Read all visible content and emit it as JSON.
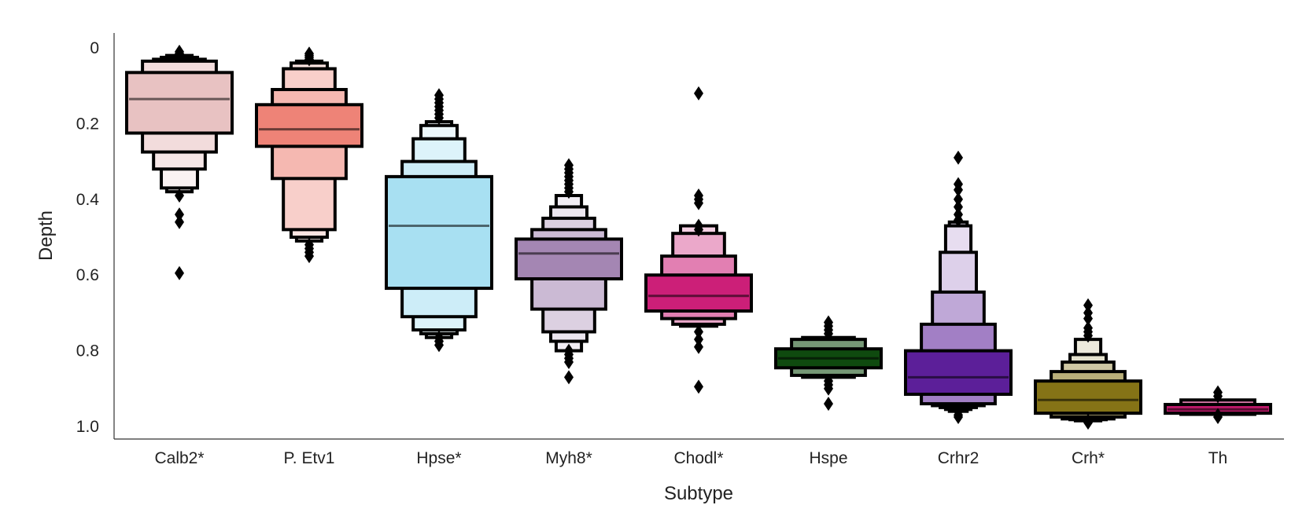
{
  "chart_data": {
    "type": "boxen",
    "xlabel": "Subtype",
    "ylabel": "Depth",
    "ylim": [
      0,
      1.0
    ],
    "y_inverted": true,
    "yticks": [
      "0",
      "0.2",
      "0.4",
      "0.6",
      "0.8",
      "1.0"
    ],
    "grid": false,
    "legend": "none",
    "categories": [
      "Calb2*",
      "P. Etv1",
      "Hpse*",
      "Myh8*",
      "Chodl*",
      "Hspe",
      "Crhr2",
      "Crh*",
      "Th"
    ],
    "series": [
      {
        "category": "Calb2*",
        "color": "#e8c2c2",
        "median": 0.135,
        "boxes": [
          [
            0.065,
            0.225
          ],
          [
            0.035,
            0.275
          ],
          [
            0.03,
            0.32
          ],
          [
            0.025,
            0.37
          ],
          [
            0.02,
            0.38
          ]
        ],
        "outliers": [
          0.01,
          0.015,
          0.39,
          0.44,
          0.46,
          0.595
        ]
      },
      {
        "category": "P. Etv1",
        "color": "#ee8377",
        "median": 0.215,
        "boxes": [
          [
            0.15,
            0.26
          ],
          [
            0.11,
            0.345
          ],
          [
            0.055,
            0.48
          ],
          [
            0.04,
            0.5
          ],
          [
            0.035,
            0.51
          ]
        ],
        "outliers": [
          0.015,
          0.02,
          0.025,
          0.03,
          0.52,
          0.53,
          0.54,
          0.55
        ]
      },
      {
        "category": "Hpse*",
        "color": "#a8e0f2",
        "median": 0.47,
        "boxes": [
          [
            0.34,
            0.635
          ],
          [
            0.3,
            0.71
          ],
          [
            0.24,
            0.745
          ],
          [
            0.205,
            0.755
          ],
          [
            0.195,
            0.765
          ]
        ],
        "outliers": [
          0.125,
          0.135,
          0.145,
          0.155,
          0.165,
          0.175,
          0.185,
          0.765,
          0.775,
          0.785
        ]
      },
      {
        "category": "Myh8*",
        "color": "#a486b3",
        "median": 0.543,
        "boxes": [
          [
            0.505,
            0.61
          ],
          [
            0.48,
            0.69
          ],
          [
            0.45,
            0.75
          ],
          [
            0.42,
            0.775
          ],
          [
            0.39,
            0.8
          ]
        ],
        "outliers": [
          0.31,
          0.32,
          0.33,
          0.34,
          0.35,
          0.36,
          0.37,
          0.38,
          0.8,
          0.81,
          0.82,
          0.83,
          0.87
        ]
      },
      {
        "category": "Chodl*",
        "color": "#cc1f78",
        "median": 0.655,
        "boxes": [
          [
            0.6,
            0.695
          ],
          [
            0.55,
            0.715
          ],
          [
            0.49,
            0.73
          ],
          [
            0.47,
            0.735
          ]
        ],
        "outliers": [
          0.12,
          0.39,
          0.4,
          0.41,
          0.47,
          0.48,
          0.75,
          0.77,
          0.79,
          0.895
        ]
      },
      {
        "category": "Hspe",
        "color": "#0f4a0f",
        "median": 0.82,
        "boxes": [
          [
            0.795,
            0.845
          ],
          [
            0.77,
            0.865
          ],
          [
            0.765,
            0.87
          ]
        ],
        "outliers": [
          0.725,
          0.735,
          0.745,
          0.755,
          0.88,
          0.89,
          0.9,
          0.94
        ]
      },
      {
        "category": "Crhr2",
        "color": "#5c1f99",
        "median": 0.87,
        "boxes": [
          [
            0.8,
            0.915
          ],
          [
            0.73,
            0.94
          ],
          [
            0.645,
            0.945
          ],
          [
            0.54,
            0.95
          ],
          [
            0.47,
            0.955
          ],
          [
            0.46,
            0.96
          ]
        ],
        "outliers": [
          0.29,
          0.36,
          0.375,
          0.4,
          0.42,
          0.44,
          0.455,
          0.96,
          0.97,
          0.975
        ]
      },
      {
        "category": "Crh*",
        "color": "#857316",
        "median": 0.93,
        "boxes": [
          [
            0.88,
            0.965
          ],
          [
            0.855,
            0.975
          ],
          [
            0.83,
            0.98
          ],
          [
            0.81,
            0.982
          ],
          [
            0.77,
            0.985
          ]
        ],
        "outliers": [
          0.68,
          0.7,
          0.715,
          0.74,
          0.75,
          0.76,
          0.985,
          0.99
        ]
      },
      {
        "category": "Th",
        "color": "#c21a6c",
        "median": 0.955,
        "boxes": [
          [
            0.942,
            0.965
          ],
          [
            0.93,
            0.968
          ]
        ],
        "outliers": [
          0.91,
          0.92,
          0.97,
          0.975
        ]
      }
    ]
  }
}
